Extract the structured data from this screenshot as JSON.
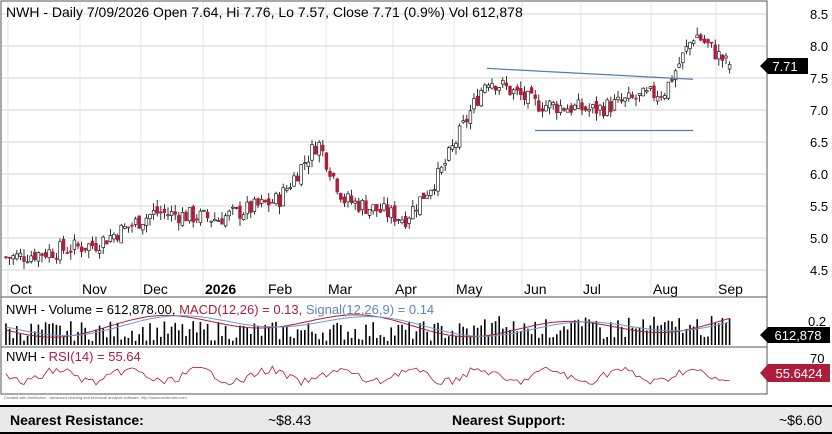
{
  "header": {
    "title": "NWH - Daily 7/09/2026 Open 7.64, Hi 7.76, Lo 7.57, Close 7.71 (0.9%) Vol 612,878"
  },
  "price_axis": {
    "ticks": [
      "8.5",
      "8.0",
      "7.5",
      "7.0",
      "6.5",
      "6.0",
      "5.5",
      "5.0",
      "4.5"
    ],
    "last_price_label": "7.71"
  },
  "time_axis": {
    "labels": [
      "Oct",
      "Nov",
      "Dec",
      "2026",
      "Feb",
      "Mar",
      "Apr",
      "May",
      "Jun",
      "Jul",
      "Aug",
      "Sep"
    ]
  },
  "volume_panel": {
    "label_prefix": "NWH - Volume = 612,878.00, ",
    "macd_label": "MACD(12,26) = 0.13, ",
    "signal_label": "Signal(12,26,9) = 0.14",
    "axis_ticks": [
      "0.2"
    ],
    "last_volume_label": "612,878"
  },
  "rsi_panel": {
    "label_prefix": "NWH - ",
    "rsi_label": "RSI(14) = 55.64",
    "axis_ticks": [
      "70"
    ],
    "last_rsi_label": "55.6424"
  },
  "credit": "Created with AmiBroker - advanced charting and technical analysis software. http://www.amibroker.com",
  "footer": {
    "resistance_label": "Nearest Resistance:",
    "resistance_value": "~$8.43",
    "support_label": "Nearest Support:",
    "support_value": "~$6.60"
  },
  "colors": {
    "up": "#ffffff",
    "down": "#b01c3c",
    "trendline": "#4f7fb0",
    "macd": "#b01c3c",
    "signal": "#6c9bc8",
    "volume": "#000000",
    "rsi": "#b01c3c"
  },
  "chart_data": {
    "type": "candlestick",
    "ticker": "NWH",
    "ylim": [
      4.5,
      8.5
    ],
    "monthly_path": [
      {
        "month": "Oct",
        "close": 4.7
      },
      {
        "month": "Nov",
        "close": 4.9
      },
      {
        "month": "Dec",
        "close": 5.4
      },
      {
        "month": "Jan",
        "close": 5.3
      },
      {
        "month": "Feb",
        "close": 5.6
      },
      {
        "month": "Feb-end",
        "close": 6.5
      },
      {
        "month": "Mar",
        "close": 5.6
      },
      {
        "month": "Apr",
        "close": 5.3
      },
      {
        "month": "Apr-mid",
        "close": 6.0
      },
      {
        "month": "May",
        "close": 7.5
      },
      {
        "month": "Jun",
        "close": 7.1
      },
      {
        "month": "Jul",
        "close": 7.0
      },
      {
        "month": "Aug",
        "close": 7.3
      },
      {
        "month": "Aug-late",
        "close": 8.2
      },
      {
        "month": "Sep",
        "close": 7.71
      }
    ],
    "last_bar": {
      "date": "7/09/2026",
      "open": 7.64,
      "high": 7.76,
      "low": 7.57,
      "close": 7.71,
      "change_pct": 0.9,
      "volume": 612878
    },
    "trendlines": [
      {
        "name": "resistance",
        "from": [
          "May",
          7.65
        ],
        "to": [
          "Aug",
          7.48
        ]
      },
      {
        "name": "support",
        "from": [
          "Jun",
          6.68
        ],
        "to": [
          "Aug",
          6.68
        ]
      }
    ],
    "macd": 0.13,
    "signal": 0.14,
    "rsi": 55.64
  }
}
